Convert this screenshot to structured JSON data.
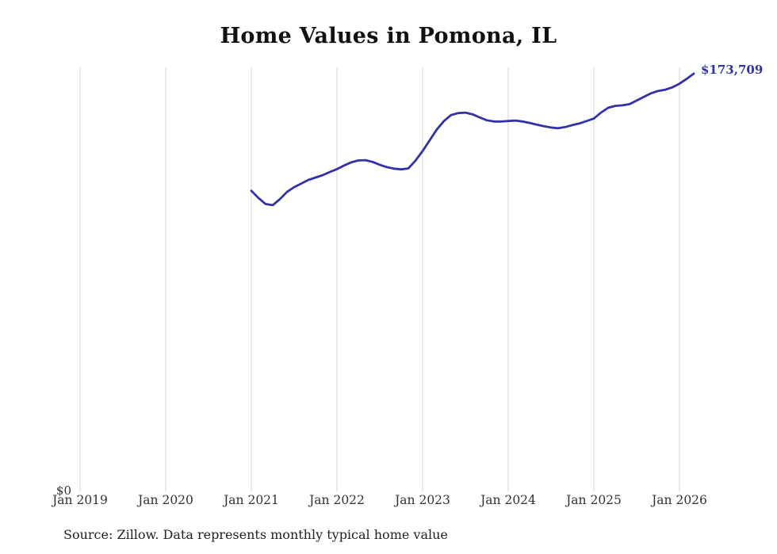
{
  "title": "Home Values in Pomona, IL",
  "y_axis": {
    "zero_label": "$0"
  },
  "end_label": "$173,709",
  "source_note": "Source: Zillow. Data represents monthly typical home value",
  "colors": {
    "line": "#3232a8",
    "grid": "#d4d4d4",
    "title_text": "#111111",
    "tick_text": "#333333"
  },
  "chart_data": {
    "type": "line",
    "title": "Home Values in Pomona, IL",
    "xlabel": "",
    "ylabel": "",
    "x_tick_labels": [
      "Jan 2019",
      "Jan 2020",
      "Jan 2021",
      "Jan 2022",
      "Jan 2023",
      "Jan 2024",
      "Jan 2025",
      "Jan 2026"
    ],
    "grid": "vertical-only",
    "ylim": [
      0,
      176300
    ],
    "series_name": "Typical home value (monthly)",
    "series_start": "Jan 2021",
    "months_offset_from_first_tick": 24,
    "frequency": "monthly",
    "values": [
      125000,
      122000,
      119500,
      119000,
      121500,
      124500,
      126500,
      128000,
      129500,
      130500,
      131500,
      132800,
      134000,
      135500,
      136800,
      137600,
      137700,
      137000,
      135800,
      134800,
      134200,
      133900,
      134300,
      137500,
      141500,
      146000,
      150500,
      154000,
      156500,
      157300,
      157500,
      156800,
      155500,
      154300,
      153800,
      153800,
      154000,
      154200,
      153800,
      153200,
      152500,
      151800,
      151300,
      151000,
      151500,
      152300,
      153000,
      154000,
      155000,
      157500,
      159500,
      160300,
      160500,
      161000,
      162500,
      164000,
      165500,
      166500,
      167000,
      168000,
      169500,
      171500,
      173709
    ],
    "end_value": 173709,
    "end_value_label": "$173,709",
    "annotations": [
      "$173,709 at end of line"
    ],
    "legend": "none"
  }
}
